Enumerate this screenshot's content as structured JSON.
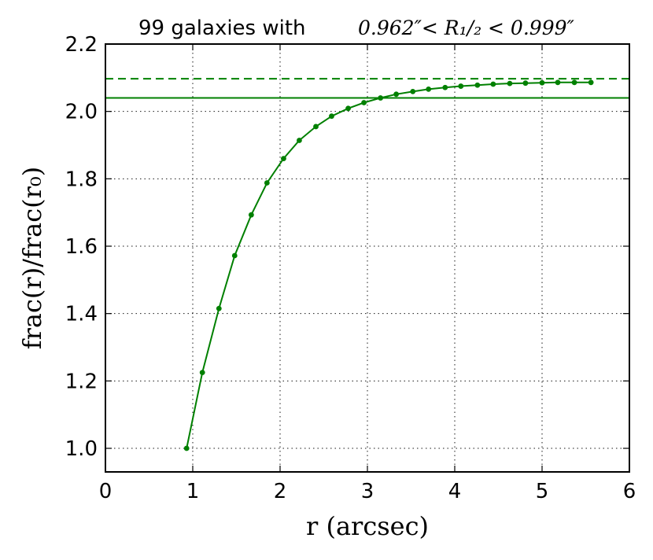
{
  "chart_data": {
    "type": "line",
    "title_prefix": "99 galaxies with",
    "title_math": "0.962″< R₁/₂ < 0.999″",
    "xlabel": "r (arcsec)",
    "ylabel": "frac(r)/frac(r₀)",
    "xlim": [
      0,
      6
    ],
    "ylim": [
      0.93,
      2.2
    ],
    "xticks": [
      "0",
      "1",
      "2",
      "3",
      "4",
      "5",
      "6"
    ],
    "yticks": [
      "1.0",
      "1.2",
      "1.4",
      "1.6",
      "1.8",
      "2.0",
      "2.2"
    ],
    "grid": true,
    "color": "#008000",
    "hlines": [
      {
        "y": 2.04,
        "style": "solid"
      },
      {
        "y": 2.097,
        "style": "dashed"
      }
    ],
    "series": [
      {
        "x": [
          0.93,
          1.11,
          1.3,
          1.48,
          1.67,
          1.85,
          2.04,
          2.22,
          2.41,
          2.59,
          2.78,
          2.96,
          3.15,
          3.33,
          3.52,
          3.7,
          3.89,
          4.07,
          4.26,
          4.44,
          4.63,
          4.81,
          5.0,
          5.18,
          5.37,
          5.56
        ],
        "values": [
          1.0,
          1.225,
          1.415,
          1.572,
          1.693,
          1.788,
          1.86,
          1.914,
          1.955,
          1.986,
          2.009,
          2.026,
          2.04,
          2.051,
          2.059,
          2.066,
          2.071,
          2.075,
          2.078,
          2.081,
          2.083,
          2.084,
          2.085,
          2.086,
          2.086,
          2.086
        ]
      }
    ]
  }
}
